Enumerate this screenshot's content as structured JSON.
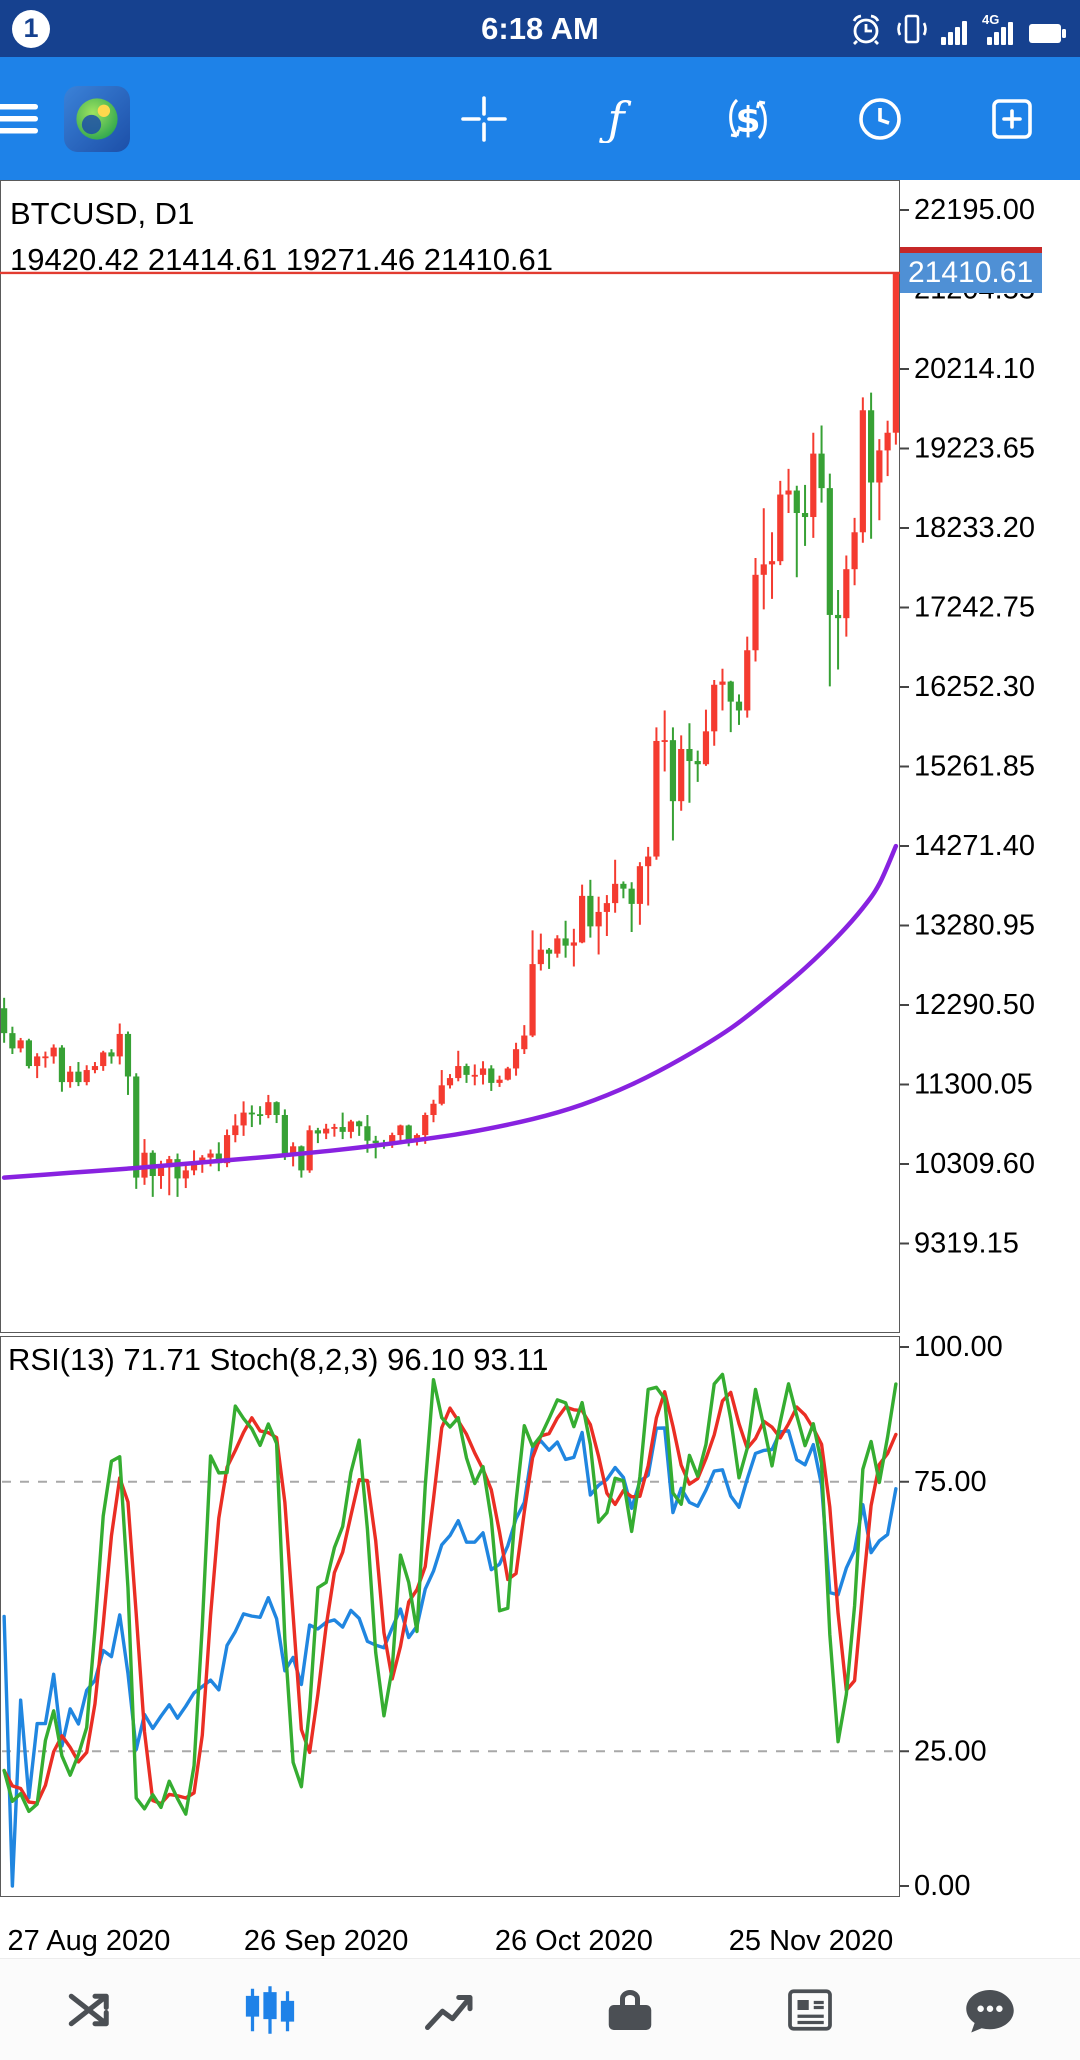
{
  "theme": {
    "status_bar_bg": "#16418f",
    "toolbar_bg": "#1e82e8",
    "nav_bg": "#fbfbfb",
    "nav_icon": "#4b4f54",
    "nav_active": "#1f82e8",
    "price_tag_bg": "#4f90d5",
    "text": "#000000"
  },
  "status_bar": {
    "notification_count": "1",
    "time": "6:18 AM",
    "signal_4g_label": "4G",
    "icons": [
      "alarm-icon",
      "vibrate-icon",
      "signal-icon",
      "signal-4g-icon",
      "battery-icon"
    ]
  },
  "toolbar": {
    "icons": [
      "menu-icon",
      "app-logo-icon",
      "crosshair-icon",
      "indicators-icon",
      "new-order-icon",
      "timeframe-clock-icon",
      "new-chart-icon"
    ]
  },
  "chart": {
    "symbol_label": "BTCUSD, D1",
    "ohlc_line": "19420.42 21414.61 19271.46 21410.61",
    "current_price": "21410.61"
  },
  "indicators": {
    "label": "RSI(13) 71.71 Stoch(8,2,3) 96.10 93.11"
  },
  "bottom_nav": {
    "items": [
      {
        "icon": "quotes-icon",
        "active": false
      },
      {
        "icon": "charts-icon",
        "active": true
      },
      {
        "icon": "trade-icon",
        "active": false
      },
      {
        "icon": "history-icon",
        "active": false
      },
      {
        "icon": "news-icon",
        "active": false
      },
      {
        "icon": "messages-icon",
        "active": false
      }
    ]
  },
  "chart_data": {
    "type": "candlestick",
    "title": "BTCUSD, D1",
    "symbol": "BTCUSD",
    "timeframe": "D1",
    "latest_ohlc": {
      "open": 19420.42,
      "high": 21414.61,
      "low": 19271.46,
      "close": 21410.61
    },
    "colors": {
      "bull": "#f43b30",
      "bear": "#37a135",
      "price_line": "#e23b30"
    },
    "y_axis": {
      "max": 22195.0,
      "min": 9319.15,
      "step": 990.45,
      "labels": [
        "22195.00",
        "21204.55",
        "20214.10",
        "19223.65",
        "18233.20",
        "17242.75",
        "16252.30",
        "15261.85",
        "14271.40",
        "13280.95",
        "12290.50",
        "11300.05",
        "10309.60",
        "9319.15"
      ]
    },
    "x_axis": {
      "labels": [
        {
          "label": "27 Aug 2020",
          "candle_index": 9
        },
        {
          "label": "26 Sep 2020",
          "candle_index": 39
        },
        {
          "label": "26 Oct 2020",
          "candle_index": 69
        },
        {
          "label": "25 Nov 2020",
          "candle_index": 99
        }
      ]
    },
    "candles": [
      [
        12250,
        12380,
        11820,
        11940
      ],
      [
        11940,
        12020,
        11680,
        11750
      ],
      [
        11750,
        11880,
        11700,
        11850
      ],
      [
        11850,
        11870,
        11500,
        11530
      ],
      [
        11530,
        11690,
        11380,
        11650
      ],
      [
        11650,
        11710,
        11510,
        11650
      ],
      [
        11650,
        11800,
        11560,
        11760
      ],
      [
        11760,
        11790,
        11210,
        11330
      ],
      [
        11330,
        11530,
        11260,
        11460
      ],
      [
        11460,
        11580,
        11280,
        11330
      ],
      [
        11330,
        11540,
        11290,
        11480
      ],
      [
        11480,
        11580,
        11440,
        11530
      ],
      [
        11530,
        11720,
        11470,
        11700
      ],
      [
        11700,
        11740,
        11560,
        11650
      ],
      [
        11650,
        12060,
        11550,
        11930
      ],
      [
        11930,
        11960,
        11170,
        11400
      ],
      [
        11400,
        11440,
        10000,
        10140
      ],
      [
        10140,
        10620,
        10050,
        10450
      ],
      [
        10450,
        10480,
        9900,
        10160
      ],
      [
        10160,
        10350,
        10000,
        10270
      ],
      [
        10270,
        10410,
        9920,
        10370
      ],
      [
        10370,
        10440,
        9900,
        10130
      ],
      [
        10130,
        10300,
        10010,
        10230
      ],
      [
        10230,
        10480,
        10170,
        10340
      ],
      [
        10340,
        10420,
        10200,
        10390
      ],
      [
        10390,
        10490,
        10280,
        10440
      ],
      [
        10440,
        10580,
        10220,
        10320
      ],
      [
        10320,
        10740,
        10270,
        10670
      ],
      [
        10670,
        10930,
        10580,
        10790
      ],
      [
        10790,
        11090,
        10660,
        10950
      ],
      [
        10950,
        11040,
        10770,
        10930
      ],
      [
        10930,
        11030,
        10800,
        10920
      ],
      [
        10920,
        11170,
        10880,
        11080
      ],
      [
        11080,
        11090,
        10820,
        10920
      ],
      [
        10920,
        10990,
        10360,
        10430
      ],
      [
        10430,
        10580,
        10280,
        10530
      ],
      [
        10530,
        10540,
        10140,
        10230
      ],
      [
        10230,
        10790,
        10200,
        10730
      ],
      [
        10730,
        10760,
        10570,
        10690
      ],
      [
        10690,
        10810,
        10620,
        10750
      ],
      [
        10750,
        10810,
        10650,
        10770
      ],
      [
        10770,
        10950,
        10620,
        10710
      ],
      [
        10710,
        10860,
        10630,
        10840
      ],
      [
        10840,
        10850,
        10660,
        10780
      ],
      [
        10780,
        10920,
        10450,
        10600
      ],
      [
        10600,
        10660,
        10380,
        10570
      ],
      [
        10570,
        10610,
        10500,
        10550
      ],
      [
        10550,
        10700,
        10510,
        10670
      ],
      [
        10670,
        10800,
        10580,
        10790
      ],
      [
        10790,
        10800,
        10530,
        10600
      ],
      [
        10600,
        10690,
        10540,
        10670
      ],
      [
        10670,
        10950,
        10560,
        10920
      ],
      [
        10920,
        11110,
        10830,
        11060
      ],
      [
        11060,
        11480,
        11040,
        11290
      ],
      [
        11290,
        11430,
        11250,
        11380
      ],
      [
        11380,
        11720,
        11340,
        11530
      ],
      [
        11530,
        11560,
        11320,
        11420
      ],
      [
        11420,
        11550,
        11290,
        11420
      ],
      [
        11420,
        11590,
        11300,
        11500
      ],
      [
        11500,
        11540,
        11220,
        11320
      ],
      [
        11320,
        11410,
        11270,
        11360
      ],
      [
        11360,
        11520,
        11350,
        11500
      ],
      [
        11500,
        11820,
        11410,
        11740
      ],
      [
        11740,
        12040,
        11680,
        11910
      ],
      [
        11910,
        13220,
        11890,
        12800
      ],
      [
        12800,
        13180,
        12720,
        12980
      ],
      [
        12980,
        13000,
        12740,
        12930
      ],
      [
        12930,
        13160,
        12880,
        13120
      ],
      [
        13120,
        13340,
        12880,
        13030
      ],
      [
        13030,
        13240,
        12770,
        13070
      ],
      [
        13070,
        13790,
        13060,
        13650
      ],
      [
        13650,
        13850,
        13130,
        13270
      ],
      [
        13270,
        13640,
        12920,
        13450
      ],
      [
        13450,
        13660,
        13150,
        13560
      ],
      [
        13560,
        14100,
        13440,
        13800
      ],
      [
        13800,
        13830,
        13620,
        13740
      ],
      [
        13740,
        13820,
        13200,
        13550
      ],
      [
        13550,
        14070,
        13290,
        14020
      ],
      [
        14020,
        14260,
        13530,
        14140
      ],
      [
        14140,
        15750,
        14100,
        15580
      ],
      [
        15580,
        15960,
        15200,
        15590
      ],
      [
        15590,
        15750,
        14340,
        14830
      ],
      [
        14830,
        15650,
        14710,
        15480
      ],
      [
        15480,
        15800,
        14810,
        15330
      ],
      [
        15330,
        15460,
        15070,
        15290
      ],
      [
        15290,
        15970,
        15270,
        15700
      ],
      [
        15700,
        16340,
        15520,
        16280
      ],
      [
        16280,
        16480,
        15960,
        16320
      ],
      [
        16320,
        16330,
        15690,
        16070
      ],
      [
        16070,
        16160,
        15780,
        15960
      ],
      [
        15960,
        16880,
        15870,
        16710
      ],
      [
        16710,
        17860,
        16570,
        17650
      ],
      [
        17650,
        18480,
        17220,
        17780
      ],
      [
        17780,
        18180,
        17350,
        17820
      ],
      [
        17820,
        18820,
        17770,
        18650
      ],
      [
        18650,
        18970,
        18420,
        18700
      ],
      [
        18700,
        18760,
        17620,
        18420
      ],
      [
        18420,
        18770,
        18010,
        18370
      ],
      [
        18370,
        19420,
        18110,
        19160
      ],
      [
        19160,
        19510,
        18550,
        18730
      ],
      [
        18730,
        18910,
        16260,
        17150
      ],
      [
        17150,
        17460,
        16470,
        17110
      ],
      [
        17110,
        17890,
        16880,
        17720
      ],
      [
        17720,
        18360,
        17520,
        18180
      ],
      [
        18180,
        19860,
        18050,
        19700
      ],
      [
        19700,
        19920,
        18100,
        18800
      ],
      [
        18800,
        19340,
        18330,
        19200
      ],
      [
        19200,
        19570,
        18880,
        19420
      ],
      [
        19420.42,
        21414.61,
        19271.46,
        21410.61
      ]
    ],
    "ma": {
      "name": "moving-average",
      "color": "#8822e0",
      "points": [
        [
          0,
          10140
        ],
        [
          8,
          10200
        ],
        [
          16,
          10260
        ],
        [
          24,
          10330
        ],
        [
          32,
          10400
        ],
        [
          40,
          10480
        ],
        [
          48,
          10580
        ],
        [
          56,
          10700
        ],
        [
          64,
          10870
        ],
        [
          70,
          11050
        ],
        [
          76,
          11300
        ],
        [
          82,
          11620
        ],
        [
          88,
          12000
        ],
        [
          93,
          12400
        ],
        [
          97,
          12750
        ],
        [
          101,
          13150
        ],
        [
          104,
          13500
        ],
        [
          106,
          13800
        ],
        [
          108,
          14270
        ]
      ]
    },
    "oscillators": {
      "rsi": {
        "period": 13,
        "value": 71.71,
        "color": "#2086e0"
      },
      "stoch": {
        "params": "8,2,3",
        "k": 96.1,
        "d": 93.11,
        "k_color": "#35ad31",
        "d_color": "#ea2e24"
      },
      "levels": [
        75,
        25
      ],
      "scale_labels": [
        "100.00",
        "75.00",
        "25.00",
        "0.00"
      ]
    }
  }
}
